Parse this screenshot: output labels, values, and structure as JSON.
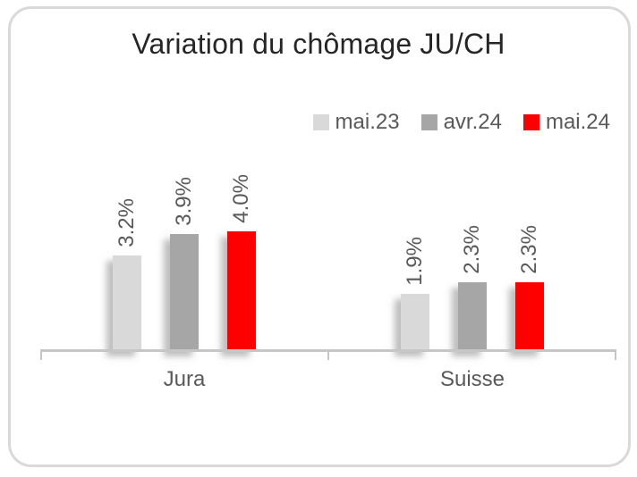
{
  "chart_data": {
    "type": "bar",
    "title": "Variation du chômage JU/CH",
    "xlabel": "",
    "ylabel": "",
    "categories": [
      "Jura",
      "Suisse"
    ],
    "series": [
      {
        "name": "mai.23",
        "color": "#D9D9D9",
        "values": [
          3.2,
          1.9
        ],
        "labels": [
          "3.2%",
          "1.9%"
        ]
      },
      {
        "name": "avr.24",
        "color": "#A6A6A6",
        "values": [
          3.9,
          2.3
        ],
        "labels": [
          "3.9%",
          "2.3%"
        ]
      },
      {
        "name": "mai.24",
        "color": "#FF0000",
        "values": [
          4.0,
          2.3
        ],
        "labels": [
          "4.0%",
          "2.3%"
        ]
      }
    ],
    "ylim": [
      0,
      4.5
    ],
    "grid": false,
    "y_axis_visible": false,
    "legend_position": "top-right",
    "data_label_rotation": 270,
    "axis_color": "#C6C6C6",
    "text_color": "#595959",
    "title_color": "#262626",
    "card_border_color": "#D9D9D9"
  }
}
